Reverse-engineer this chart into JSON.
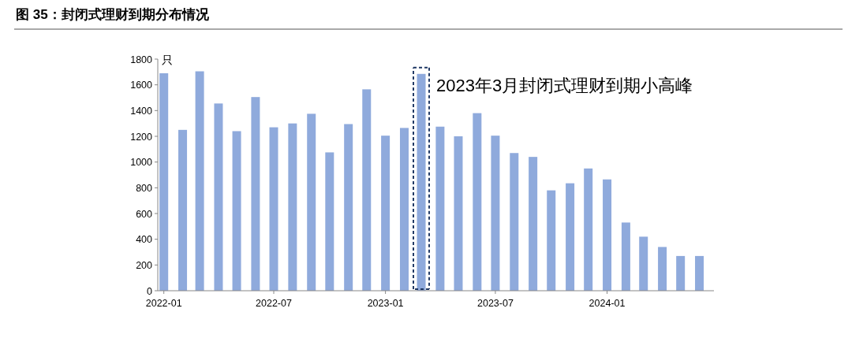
{
  "chart_data": {
    "type": "bar",
    "title": "图 35：封闭式理财到期分布情况",
    "ylabel": "只",
    "color": "#8faadc",
    "x": [
      "2022-01",
      "2022-02",
      "2022-03",
      "2022-04",
      "2022-05",
      "2022-06",
      "2022-07",
      "2022-08",
      "2022-09",
      "2022-10",
      "2022-11",
      "2022-12",
      "2023-01",
      "2023-02",
      "2023-03",
      "2023-04",
      "2023-05",
      "2023-06",
      "2023-07",
      "2023-08",
      "2023-09",
      "2023-10",
      "2023-11",
      "2023-12",
      "2024-01",
      "2024-02",
      "2024-03",
      "2024-04",
      "2024-05",
      "2024-06"
    ],
    "values": [
      1690,
      1250,
      1705,
      1455,
      1240,
      1505,
      1270,
      1300,
      1375,
      1075,
      1295,
      1565,
      1205,
      1265,
      1685,
      1275,
      1200,
      1380,
      1205,
      1070,
      1040,
      780,
      835,
      950,
      865,
      530,
      420,
      340,
      270,
      270
    ],
    "xlim": [
      "2021-12-22",
      "2024-06-25"
    ],
    "xticks": [
      "2022-01",
      "2022-07",
      "2023-01",
      "2023-07",
      "2024-01"
    ],
    "ylim": [
      0,
      1800
    ],
    "yticks": [
      0,
      200,
      400,
      600,
      800,
      1000,
      1200,
      1400,
      1600,
      1800
    ],
    "annotations": [
      {
        "text": "2023年3月封闭式理财到期小高峰",
        "x": "2023-03",
        "y": 1685
      }
    ]
  }
}
